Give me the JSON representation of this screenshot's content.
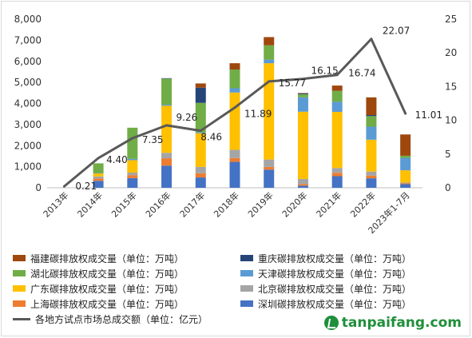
{
  "chart_data": {
    "type": "bar",
    "stacked": true,
    "categories": [
      "2013年",
      "2014年",
      "2015年",
      "2016年",
      "2017年",
      "2018年",
      "2019年",
      "2020年",
      "2021年",
      "2022年",
      "2023年1-7月"
    ],
    "y_left": {
      "ticks": [
        "0",
        "1,000",
        "2,000",
        "3,000",
        "4,000",
        "5,000",
        "6,000",
        "7,000",
        "8,000"
      ],
      "ylim": [
        0,
        8000
      ]
    },
    "y_right": {
      "ticks": [
        "0",
        "5",
        "10",
        "15",
        "20",
        "25"
      ],
      "ylim": [
        0,
        25
      ]
    },
    "series": [
      {
        "name": "深圳碳排放权成交量（单位：万吨）",
        "color": "#4472c4",
        "values": [
          0,
          330,
          460,
          1050,
          490,
          1230,
          860,
          100,
          550,
          450,
          170
        ]
      },
      {
        "name": "上海碳排放权成交量（单位：万吨）",
        "color": "#ed7d31",
        "values": [
          0,
          110,
          140,
          350,
          200,
          180,
          130,
          80,
          160,
          130,
          40
        ]
      },
      {
        "name": "北京碳排放权成交量（单位：万吨）",
        "color": "#a5a5a5",
        "values": [
          0,
          100,
          120,
          260,
          300,
          390,
          350,
          240,
          230,
          190,
          40
        ]
      },
      {
        "name": "广东碳排放权成交量（单位：万吨）",
        "color": "#ffc000",
        "values": [
          0,
          140,
          590,
          2230,
          1600,
          2720,
          4570,
          3190,
          2660,
          1510,
          580
        ]
      },
      {
        "name": "天津碳排放权成交量（单位：万吨）",
        "color": "#5b9bd5",
        "values": [
          0,
          20,
          60,
          50,
          40,
          200,
          170,
          680,
          480,
          620,
          590
        ]
      },
      {
        "name": "湖北碳排放权成交量（单位：万吨）",
        "color": "#70ad47",
        "values": [
          0,
          460,
          1480,
          1240,
          1400,
          890,
          680,
          150,
          520,
          500,
          100
        ]
      },
      {
        "name": "重庆碳排放权成交量（单位：万吨）",
        "color": "#264478",
        "values": [
          0,
          0,
          0,
          20,
          720,
          0,
          0,
          40,
          0,
          50,
          0
        ]
      },
      {
        "name": "福建碳排放权成交量（单位：万吨）",
        "color": "#9e480e",
        "values": [
          0,
          0,
          0,
          0,
          200,
          300,
          390,
          20,
          250,
          840,
          1010
        ]
      }
    ],
    "line": {
      "name": "各地方试点市场总成交额（单位：亿元）",
      "color": "#595959",
      "values": [
        0.21,
        4.4,
        7.35,
        9.26,
        8.46,
        11.89,
        15.77,
        16.15,
        16.74,
        22.07,
        11.01
      ],
      "labels": [
        "0.21",
        "4.40",
        "7.35",
        "9.26",
        "8.46",
        "11.89",
        "15.77",
        "16.15",
        "16.74",
        "22.07",
        "11.01"
      ]
    }
  },
  "legend": [
    {
      "label": "福建碳排放权成交量（单位：万吨）",
      "color": "#9e480e",
      "kind": "bar"
    },
    {
      "label": "重庆碳排放权成交量（单位：万吨）",
      "color": "#264478",
      "kind": "bar"
    },
    {
      "label": "湖北碳排放权成交量（单位：万吨）",
      "color": "#70ad47",
      "kind": "bar"
    },
    {
      "label": "天津碳排放权成交量（单位：万吨）",
      "color": "#5b9bd5",
      "kind": "bar"
    },
    {
      "label": "广东碳排放权成交量（单位：万吨）",
      "color": "#ffc000",
      "kind": "bar"
    },
    {
      "label": "北京碳排放权成交量（单位：万吨）",
      "color": "#a5a5a5",
      "kind": "bar"
    },
    {
      "label": "上海碳排放权成交量（单位：万吨）",
      "color": "#ed7d31",
      "kind": "bar"
    },
    {
      "label": "深圳碳排放权成交量（单位：万吨）",
      "color": "#4472c4",
      "kind": "bar"
    },
    {
      "label": "各地方试点市场总成交额（单位：亿元）",
      "color": "#595959",
      "kind": "line"
    }
  ],
  "watermark": {
    "text": "tanpaifang.com"
  }
}
